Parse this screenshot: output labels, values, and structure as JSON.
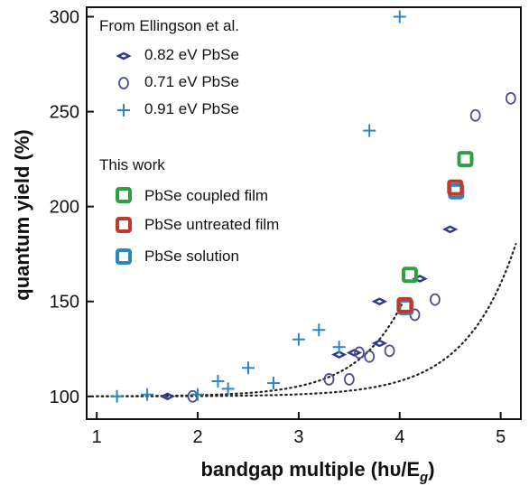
{
  "chart_data": {
    "type": "scatter",
    "xlabel": "bandgap multiple (hυ/E",
    "xlabel_sub": "g",
    "xlabel_close": ")",
    "ylabel": "quantum yield (%)",
    "xlim": [
      0.9,
      5.2
    ],
    "ylim": [
      88,
      305
    ],
    "xticks": [
      1,
      2,
      3,
      4,
      5
    ],
    "yticks": [
      100,
      150,
      200,
      250,
      300
    ],
    "grid": false,
    "legend": {
      "position": "top-left",
      "group1_title": "From Ellingson et al.",
      "group2_title": "This work"
    },
    "series": [
      {
        "name": "0.82 eV PbSe",
        "marker": "diamond",
        "color": "#2e3a8c",
        "points": [
          [
            1.7,
            100
          ],
          [
            3.4,
            122
          ],
          [
            3.55,
            123
          ],
          [
            3.8,
            128
          ],
          [
            3.8,
            150
          ],
          [
            4.2,
            162
          ],
          [
            4.5,
            188
          ]
        ]
      },
      {
        "name": "0.71 eV PbSe",
        "marker": "circle",
        "color": "#4d4d8f",
        "points": [
          [
            1.95,
            100
          ],
          [
            3.3,
            109
          ],
          [
            3.5,
            109
          ],
          [
            3.6,
            123
          ],
          [
            3.7,
            121
          ],
          [
            3.9,
            124
          ],
          [
            4.15,
            143
          ],
          [
            4.35,
            151
          ],
          [
            4.75,
            248
          ],
          [
            5.1,
            257
          ]
        ]
      },
      {
        "name": "0.91 eV PbSe",
        "marker": "plus",
        "color": "#2a86c4",
        "points": [
          [
            1.2,
            100
          ],
          [
            1.5,
            101
          ],
          [
            2.0,
            101
          ],
          [
            2.2,
            108
          ],
          [
            2.3,
            104
          ],
          [
            2.5,
            115
          ],
          [
            2.75,
            107
          ],
          [
            3.0,
            130
          ],
          [
            3.2,
            135
          ],
          [
            3.4,
            126
          ],
          [
            3.7,
            240
          ],
          [
            4.0,
            300
          ]
        ]
      },
      {
        "name": "PbSe coupled film",
        "marker": "square",
        "color": "#2ea043",
        "points": [
          [
            4.1,
            164
          ],
          [
            4.65,
            225
          ]
        ]
      },
      {
        "name": "PbSe untreated film",
        "marker": "square",
        "color": "#c0392b",
        "points": [
          [
            4.05,
            148
          ],
          [
            4.55,
            210
          ]
        ]
      },
      {
        "name": "PbSe solution",
        "marker": "square",
        "color": "#2a86c4",
        "points": [
          [
            4.05,
            148
          ],
          [
            4.55,
            209
          ]
        ]
      }
    ],
    "fit_curves": [
      {
        "style": "dotted",
        "x_range": [
          1.0,
          4.05
        ],
        "model": "exp",
        "base": 100,
        "a": 0.0082,
        "b": 2.16
      },
      {
        "style": "dotted",
        "x_range": [
          1.0,
          5.15
        ],
        "model": "exp",
        "base": 100,
        "a": 0.0027,
        "b": 2.0
      }
    ]
  }
}
